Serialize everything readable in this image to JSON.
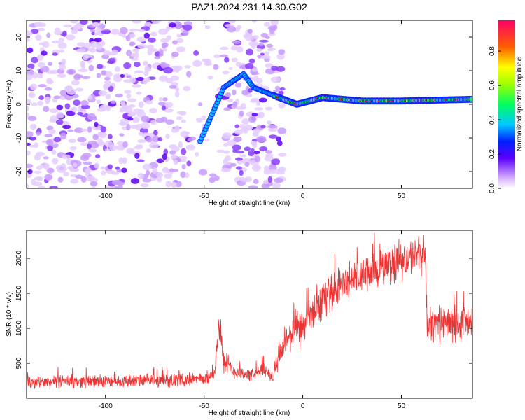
{
  "chart_data": [
    {
      "type": "heatmap",
      "title": "PAZ1.2024.231.14.30.G02",
      "xlabel": "Height of straight line (km)",
      "ylabel": "Frequency (Hz)",
      "xlim": [
        -140,
        86
      ],
      "ylim": [
        -25,
        25
      ],
      "xticks": [
        -100,
        -50,
        0,
        50
      ],
      "yticks": [
        -20,
        -10,
        0,
        10,
        20
      ],
      "colorbar": {
        "label": "Normalized spectral amplitude",
        "range": [
          0,
          0.98
        ],
        "ticks": [
          0.0,
          0.2,
          0.4,
          0.6,
          0.8
        ]
      },
      "description_points": {
        "noise_region_x": [
          -140,
          -10
        ],
        "signal_track": [
          {
            "x": -52,
            "y": -11
          },
          {
            "x": -40,
            "y": 5
          },
          {
            "x": -30,
            "y": 9
          },
          {
            "x": -25,
            "y": 5
          },
          {
            "x": -12,
            "y": 2
          },
          {
            "x": -3,
            "y": 0
          },
          {
            "x": 10,
            "y": 2
          },
          {
            "x": 30,
            "y": 1
          },
          {
            "x": 50,
            "y": 1
          },
          {
            "x": 86,
            "y": 1.5
          }
        ]
      }
    },
    {
      "type": "line",
      "xlabel": "Height of straight line (km)",
      "ylabel": "SNR (10 * v/v)",
      "xlim": [
        -140,
        86
      ],
      "ylim": [
        0,
        2400
      ],
      "xticks": [
        -100,
        -50,
        0,
        50
      ],
      "yticks": [
        500,
        1000,
        1500,
        2000
      ],
      "series": [
        {
          "color": "#ee3333",
          "x": [
            -140,
            -120,
            -100,
            -80,
            -60,
            -50,
            -45,
            -42,
            -40,
            -35,
            -30,
            -25,
            -20,
            -15,
            -10,
            -5,
            0,
            5,
            10,
            15,
            20,
            25,
            30,
            35,
            40,
            45,
            50,
            55,
            60,
            62,
            63,
            65,
            70,
            75,
            80,
            86
          ],
          "y": [
            220,
            240,
            240,
            250,
            260,
            280,
            330,
            1100,
            500,
            380,
            350,
            320,
            420,
            300,
            750,
            950,
            1000,
            1200,
            1400,
            1550,
            1600,
            1700,
            1750,
            1800,
            1850,
            1900,
            1950,
            2000,
            2050,
            2100,
            1050,
            1050,
            1050,
            1060,
            1050,
            1080
          ]
        }
      ]
    }
  ]
}
